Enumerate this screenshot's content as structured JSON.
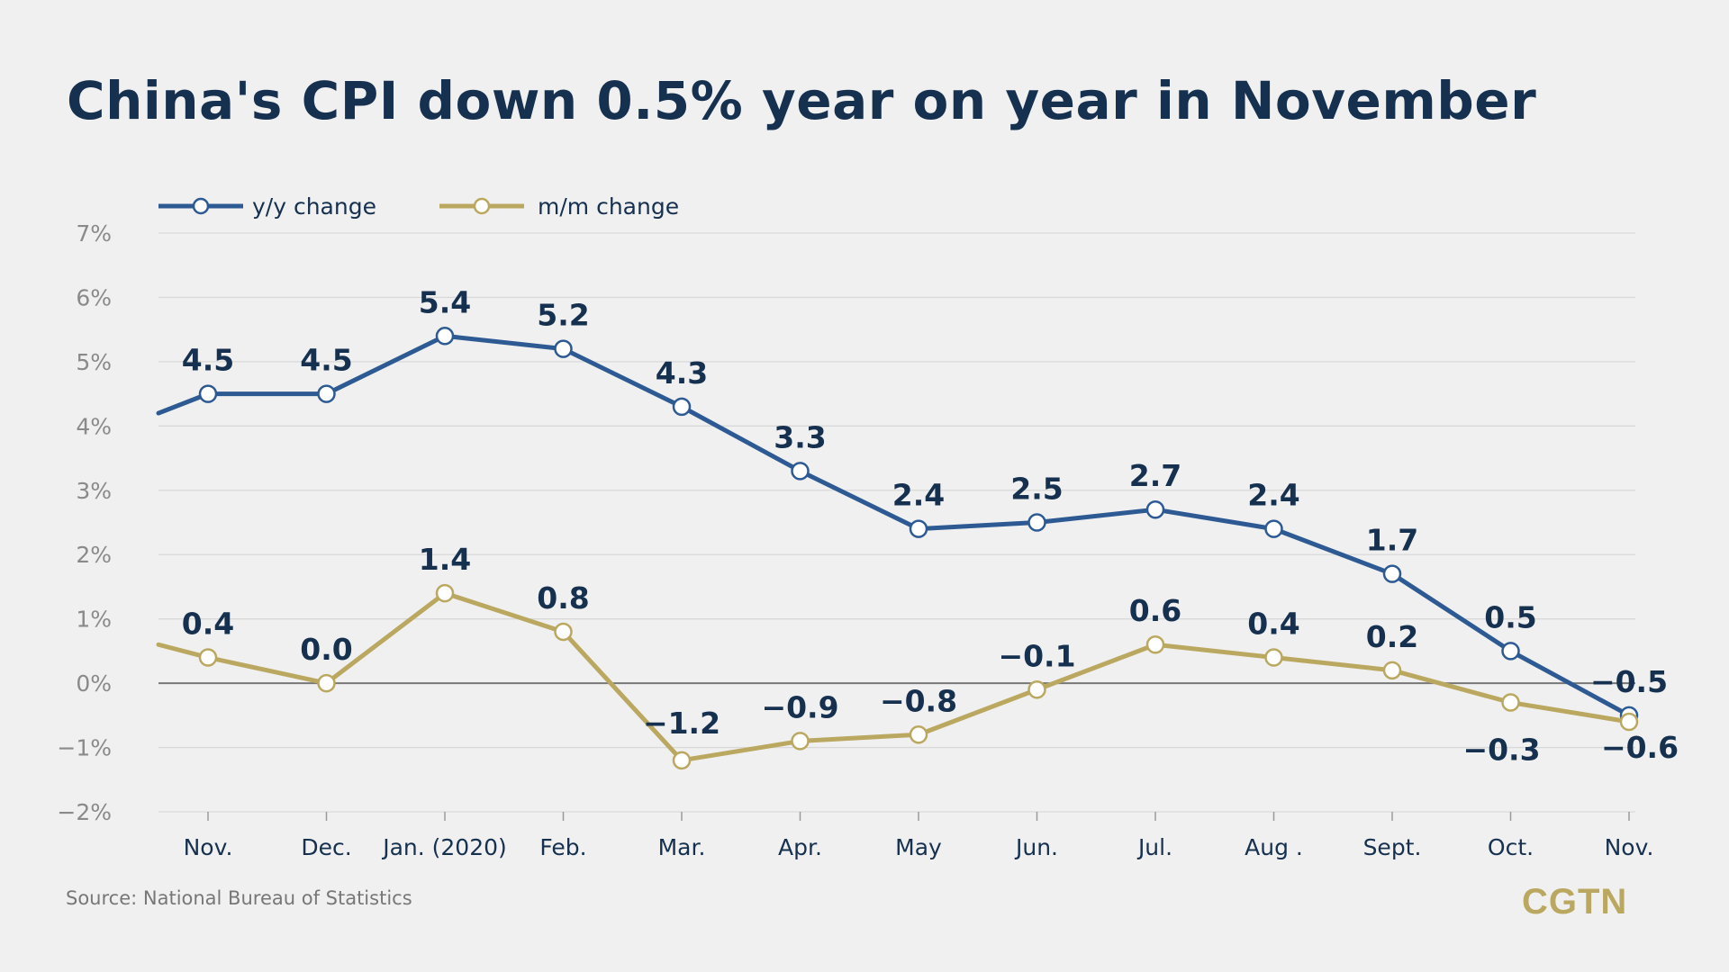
{
  "title": "China's CPI down 0.5% year on year in November",
  "source": "Source: National Bureau of Statistics",
  "logo": "CGTN",
  "colors": {
    "background": "#f0f0f0",
    "title": "#16304f",
    "yy_series": "#2e5a93",
    "mm_series": "#bba860",
    "grid": "#d9d9d9",
    "zero_line": "#777777"
  },
  "chart_data": {
    "type": "line",
    "title": "China's CPI down 0.5% year on year in November",
    "categories": [
      "Nov.",
      "Dec.",
      "Jan. (2020)",
      "Feb.",
      "Mar.",
      "Apr.",
      "May",
      "Jun.",
      "Jul.",
      "Aug .",
      "Sept.",
      "Oct.",
      "Nov."
    ],
    "series": [
      {
        "name": "y/y change",
        "values": [
          4.5,
          4.5,
          5.4,
          5.2,
          4.3,
          3.3,
          2.4,
          2.5,
          2.7,
          2.4,
          1.7,
          0.5,
          -0.5
        ],
        "labels": [
          "4.5",
          "4.5",
          "5.4",
          "5.2",
          "4.3",
          "3.3",
          "2.4",
          "2.5",
          "2.7",
          "2.4",
          "1.7",
          "0.5",
          "−0.5"
        ],
        "lead_in_value": 4.2,
        "color": "#2e5a93"
      },
      {
        "name": "m/m change",
        "values": [
          0.4,
          0.0,
          1.4,
          0.8,
          -1.2,
          -0.9,
          -0.8,
          -0.1,
          0.6,
          0.4,
          0.2,
          -0.3,
          -0.6
        ],
        "labels": [
          "0.4",
          "0.0",
          "1.4",
          "0.8",
          "−1.2",
          "−0.9",
          "−0.8",
          "−0.1",
          "0.6",
          "0.4",
          "0.2",
          "−0.3",
          "−0.6"
        ],
        "lead_in_value": 0.6,
        "color": "#bba860"
      }
    ],
    "y_ticks": [
      "7%",
      "6%",
      "5%",
      "4%",
      "3%",
      "2%",
      "1%",
      "0%",
      "−1%",
      "−2%"
    ],
    "ylim": [
      -2,
      7
    ],
    "xlabel": "",
    "ylabel": "",
    "grid": true,
    "legend": "top-left"
  }
}
